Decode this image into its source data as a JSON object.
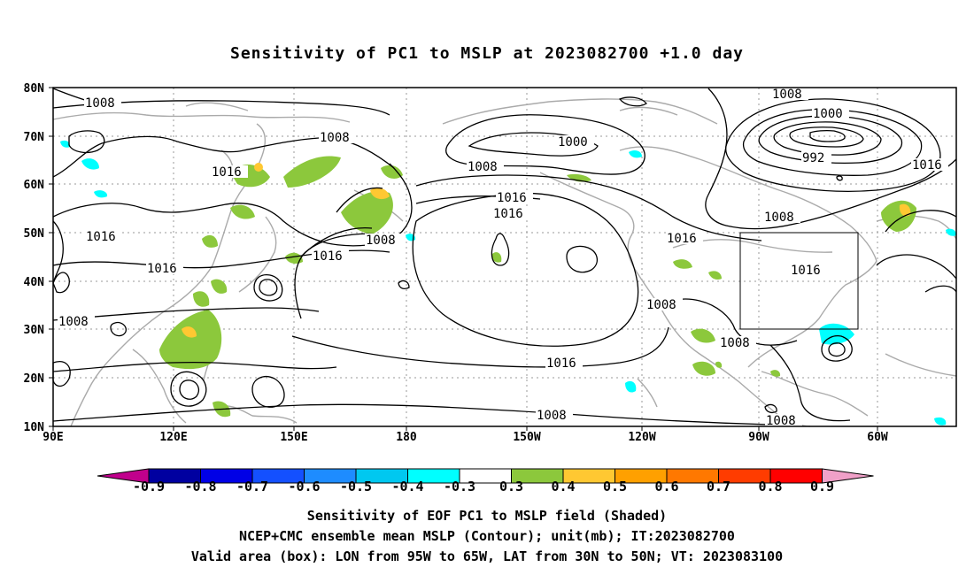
{
  "title": "Sensitivity of PC1 to MSLP at 2023082700 +1.0 day",
  "lat_labels": [
    "80N",
    "70N",
    "60N",
    "50N",
    "40N",
    "30N",
    "20N",
    "10N"
  ],
  "lon_labels": [
    "90E",
    "120E",
    "150E",
    "180",
    "150W",
    "120W",
    "90W",
    "60W"
  ],
  "contour_labels": [
    "1008",
    "1008",
    "1016",
    "1016",
    "1016",
    "1016",
    "1016",
    "1016",
    "1016",
    "1016",
    "1008",
    "1008",
    "1008",
    "1008",
    "1008",
    "1008",
    "1008",
    "1000",
    "1000",
    "992",
    "1008",
    "1016"
  ],
  "colorbar": {
    "labels": [
      "-0.9",
      "-0.8",
      "-0.7",
      "-0.6",
      "-0.5",
      "-0.4",
      "-0.3",
      "0.3",
      "0.4",
      "0.5",
      "0.6",
      "0.7",
      "0.8",
      "0.9"
    ],
    "colors": [
      "#c0008c",
      "#0000a0",
      "#0000e6",
      "#1450ff",
      "#1e8cff",
      "#00c8f0",
      "#00ffff",
      "#ffffff",
      "#8cc83c",
      "#ffc832",
      "#ffa000",
      "#ff7800",
      "#ff3c00",
      "#ff0000",
      "#f0a0c8"
    ]
  },
  "caption": {
    "line1": "Sensitivity of EOF PC1 to MSLP field (Shaded)",
    "line2": "NCEP+CMC ensemble mean MSLP (Contour); unit(mb); IT:2023082700",
    "line3": "Valid area (box): LON from 95W to 65W, LAT from 30N to 50N; VT: 2023083100"
  }
}
